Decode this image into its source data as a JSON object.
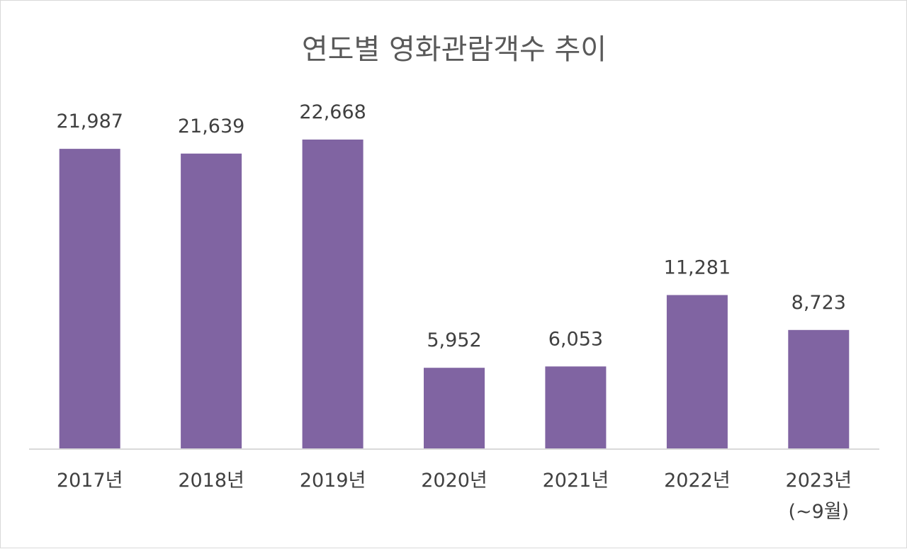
{
  "chart_data": {
    "type": "bar",
    "title": "연도별 영화관람객수 추이",
    "categories": [
      "2017년",
      "2018년",
      "2019년",
      "2020년",
      "2021년",
      "2022년",
      "2023년"
    ],
    "category_notes": [
      "",
      "",
      "",
      "",
      "",
      "",
      "(~9월)"
    ],
    "values": [
      21987,
      21639,
      22668,
      5952,
      6053,
      11281,
      8723
    ],
    "value_labels": [
      "21,987",
      "21,639",
      "22,668",
      "5,952",
      "6,053",
      "11,281",
      "8,723"
    ],
    "xlabel": "",
    "ylabel": "",
    "ylim": [
      0,
      25000
    ],
    "grid": false,
    "legend": "none",
    "bar_color": "#8064a2"
  }
}
